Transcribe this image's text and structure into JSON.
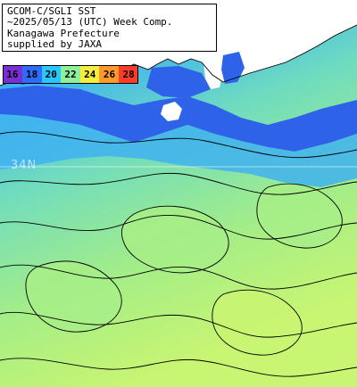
{
  "title_lines": [
    "GCOM-C/SGLI SST",
    "~2025/05/13 (UTC) Week Comp.",
    "Kanagawa Prefecture",
    "supplied by JAXA"
  ],
  "legend": {
    "labels": [
      "16",
      "18",
      "20",
      "22",
      "24",
      "26",
      "28"
    ],
    "colors": [
      "#7a2fd6",
      "#2f6bff",
      "#27c7ff",
      "#8ff09a",
      "#f3ef3a",
      "#ff9a2a",
      "#ff3b2a"
    ]
  },
  "latitude_label": "34N",
  "colors": {
    "land": "#ffffff",
    "cold_water": "#2e62e8",
    "cool_water": "#3fb2f0",
    "mid_water": "#6fdcbf",
    "warm_water": "#a6ee86",
    "warmest_water": "#c8f572",
    "contour": "#000000"
  }
}
